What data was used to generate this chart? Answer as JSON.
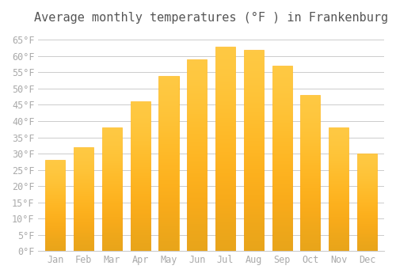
{
  "title": "Average monthly temperatures (°F ) in Frankenburg",
  "months": [
    "Jan",
    "Feb",
    "Mar",
    "Apr",
    "May",
    "Jun",
    "Jul",
    "Aug",
    "Sep",
    "Oct",
    "Nov",
    "Dec"
  ],
  "values": [
    28,
    32,
    38,
    46,
    54,
    59,
    63,
    62,
    57,
    48,
    38,
    30
  ],
  "bar_color": "#FFC020",
  "bar_edge_color": "#FFB000",
  "background_color": "#FFFFFF",
  "grid_color": "#CCCCCC",
  "text_color": "#AAAAAA",
  "ylim": [
    0,
    68
  ],
  "yticks": [
    0,
    5,
    10,
    15,
    20,
    25,
    30,
    35,
    40,
    45,
    50,
    55,
    60,
    65
  ],
  "tick_label_suffix": "°F",
  "title_fontsize": 11,
  "tick_fontsize": 8.5,
  "font_family": "monospace"
}
